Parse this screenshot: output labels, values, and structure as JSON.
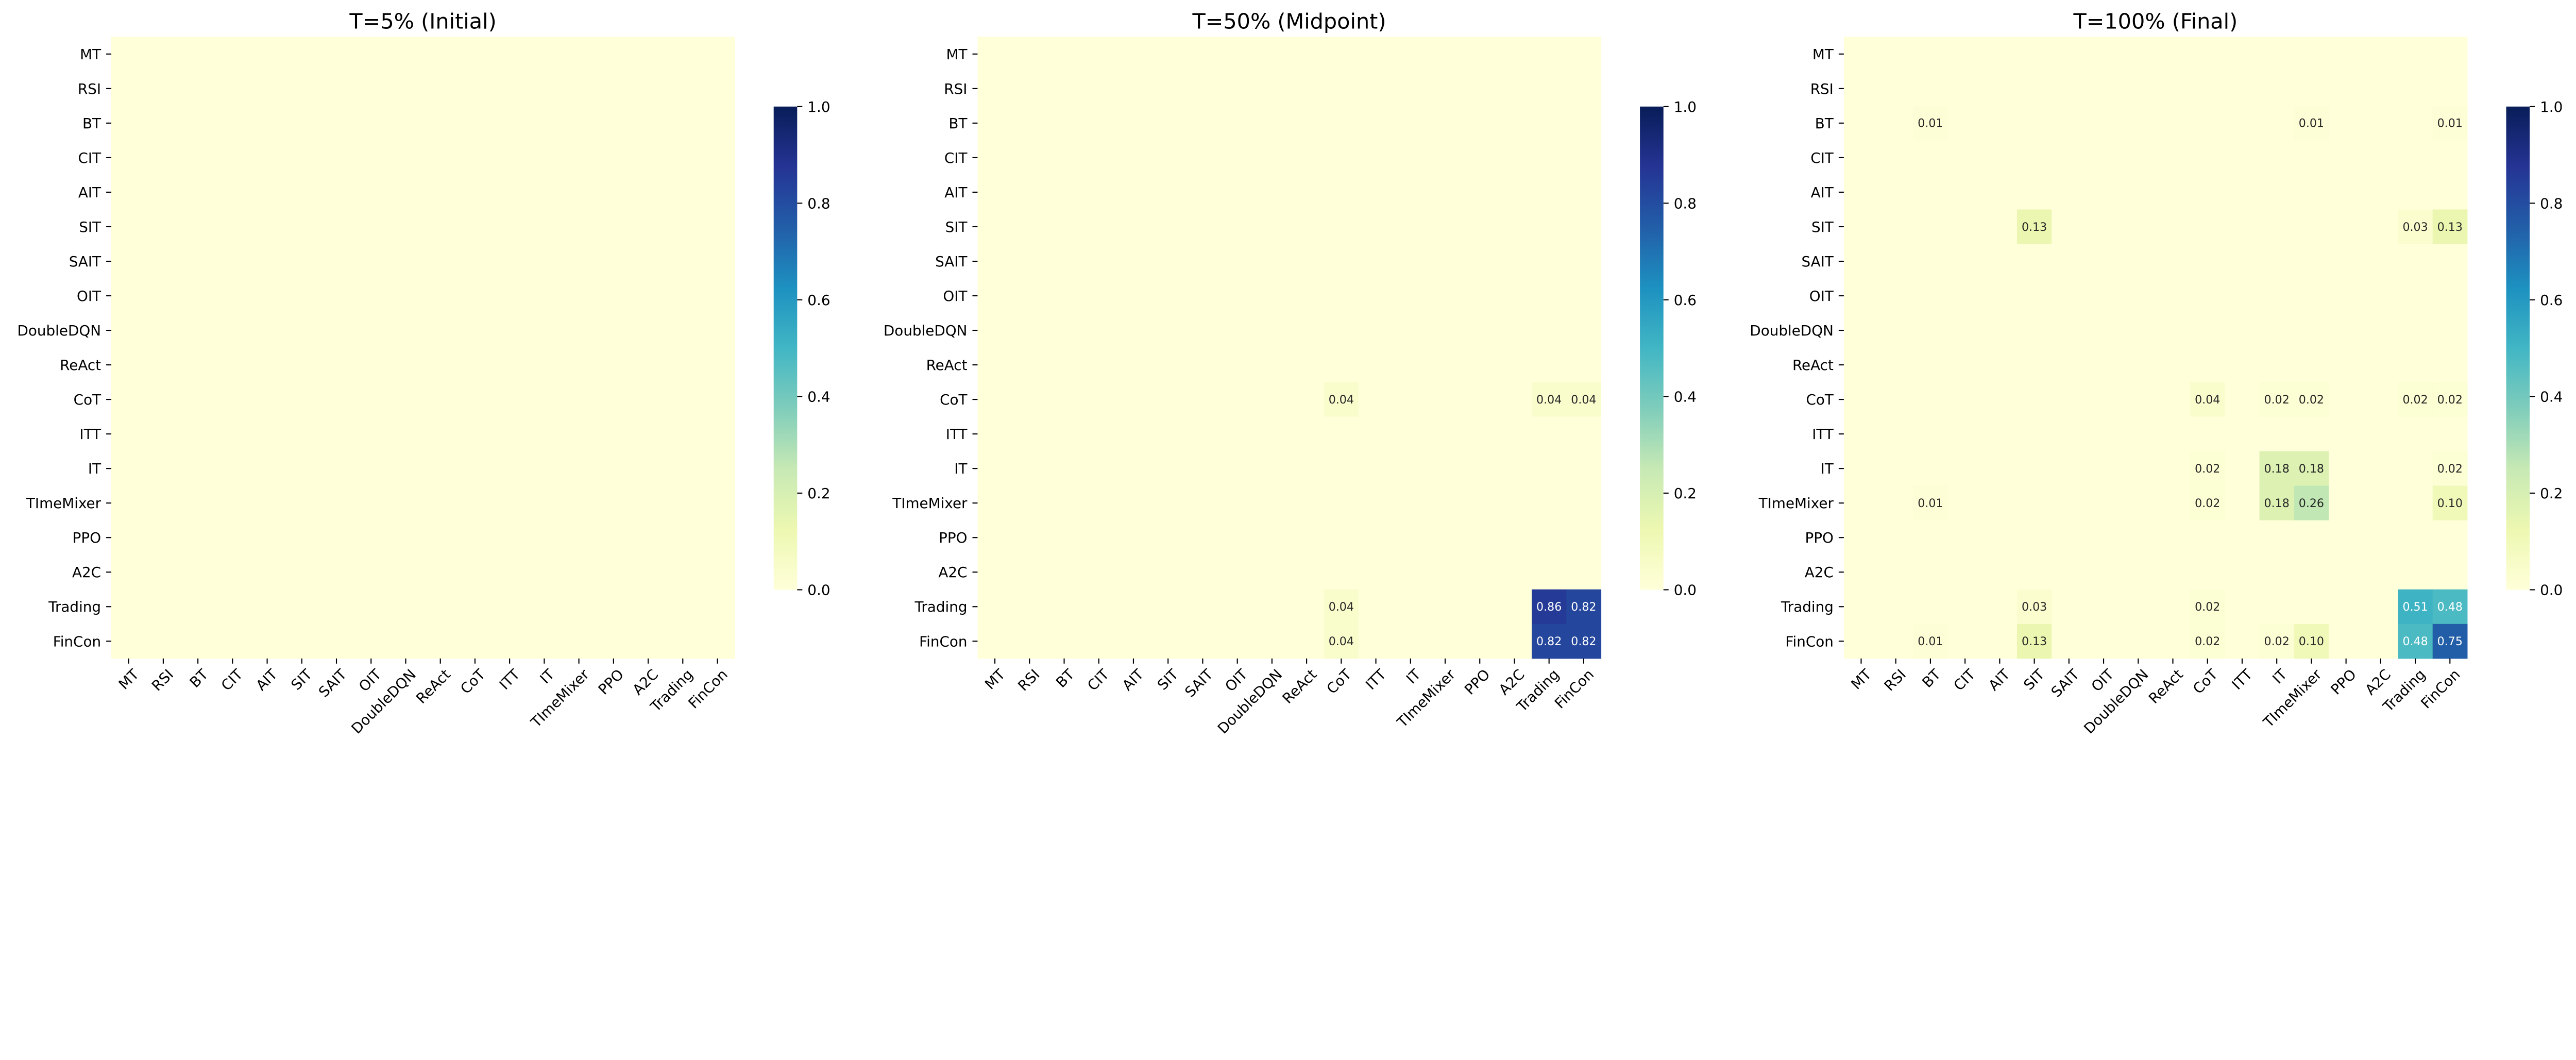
{
  "chart_data": {
    "type": "heatmap",
    "colormap": "YlGnBu",
    "colormap_stops": [
      "#ffffd9",
      "#edf8b1",
      "#c7e9b4",
      "#7fcdbb",
      "#41b6c4",
      "#1d91c0",
      "#225ea8",
      "#253494",
      "#081d58"
    ],
    "color_range": [
      0,
      1
    ],
    "colorbar_ticks": [
      "0.0",
      "0.2",
      "0.4",
      "0.6",
      "0.8",
      "1.0"
    ],
    "labels": [
      "MT",
      "RSI",
      "BT",
      "CIT",
      "AIT",
      "SIT",
      "SAIT",
      "OIT",
      "DoubleDQN",
      "ReAct",
      "CoT",
      "ITT",
      "IT",
      "TImeMixer",
      "PPO",
      "A2C",
      "Trading",
      "FinCon"
    ],
    "default_value": 0,
    "zero_cells_annotated": false,
    "panels": [
      {
        "title": "T=5% (Initial)",
        "cells": []
      },
      {
        "title": "T=50% (Midpoint)",
        "cells": [
          {
            "row": "CoT",
            "col": "CoT",
            "value": 0.04
          },
          {
            "row": "CoT",
            "col": "Trading",
            "value": 0.04
          },
          {
            "row": "CoT",
            "col": "FinCon",
            "value": 0.04
          },
          {
            "row": "Trading",
            "col": "CoT",
            "value": 0.04
          },
          {
            "row": "Trading",
            "col": "Trading",
            "value": 0.86
          },
          {
            "row": "Trading",
            "col": "FinCon",
            "value": 0.82
          },
          {
            "row": "FinCon",
            "col": "CoT",
            "value": 0.04
          },
          {
            "row": "FinCon",
            "col": "Trading",
            "value": 0.82
          },
          {
            "row": "FinCon",
            "col": "FinCon",
            "value": 0.82
          }
        ]
      },
      {
        "title": "T=100% (Final)",
        "cells": [
          {
            "row": "BT",
            "col": "BT",
            "value": 0.01
          },
          {
            "row": "BT",
            "col": "TImeMixer",
            "value": 0.01
          },
          {
            "row": "BT",
            "col": "FinCon",
            "value": 0.01
          },
          {
            "row": "SIT",
            "col": "SIT",
            "value": 0.13
          },
          {
            "row": "SIT",
            "col": "Trading",
            "value": 0.03
          },
          {
            "row": "SIT",
            "col": "FinCon",
            "value": 0.13
          },
          {
            "row": "CoT",
            "col": "CoT",
            "value": 0.04
          },
          {
            "row": "CoT",
            "col": "IT",
            "value": 0.02
          },
          {
            "row": "CoT",
            "col": "TImeMixer",
            "value": 0.02
          },
          {
            "row": "CoT",
            "col": "Trading",
            "value": 0.02
          },
          {
            "row": "CoT",
            "col": "FinCon",
            "value": 0.02
          },
          {
            "row": "IT",
            "col": "CoT",
            "value": 0.02
          },
          {
            "row": "IT",
            "col": "IT",
            "value": 0.18
          },
          {
            "row": "IT",
            "col": "TImeMixer",
            "value": 0.18
          },
          {
            "row": "IT",
            "col": "FinCon",
            "value": 0.02
          },
          {
            "row": "TImeMixer",
            "col": "BT",
            "value": 0.01
          },
          {
            "row": "TImeMixer",
            "col": "CoT",
            "value": 0.02
          },
          {
            "row": "TImeMixer",
            "col": "IT",
            "value": 0.18
          },
          {
            "row": "TImeMixer",
            "col": "TImeMixer",
            "value": 0.26
          },
          {
            "row": "TImeMixer",
            "col": "FinCon",
            "value": 0.1
          },
          {
            "row": "Trading",
            "col": "SIT",
            "value": 0.03
          },
          {
            "row": "Trading",
            "col": "CoT",
            "value": 0.02
          },
          {
            "row": "Trading",
            "col": "Trading",
            "value": 0.51
          },
          {
            "row": "Trading",
            "col": "FinCon",
            "value": 0.48
          },
          {
            "row": "FinCon",
            "col": "BT",
            "value": 0.01
          },
          {
            "row": "FinCon",
            "col": "SIT",
            "value": 0.13
          },
          {
            "row": "FinCon",
            "col": "CoT",
            "value": 0.02
          },
          {
            "row": "FinCon",
            "col": "IT",
            "value": 0.02
          },
          {
            "row": "FinCon",
            "col": "TImeMixer",
            "value": 0.1
          },
          {
            "row": "FinCon",
            "col": "Trading",
            "value": 0.48
          },
          {
            "row": "FinCon",
            "col": "FinCon",
            "value": 0.75
          }
        ]
      }
    ]
  }
}
